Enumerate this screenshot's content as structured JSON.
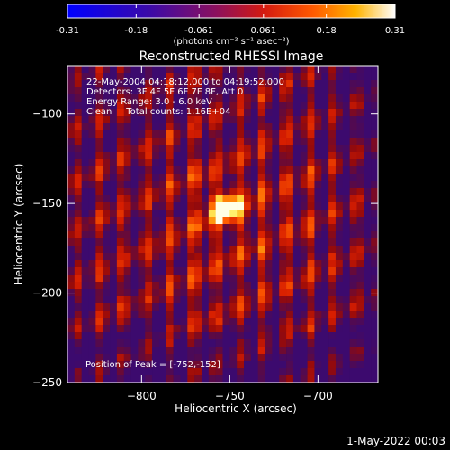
{
  "colorbar": {
    "tick_labels": [
      "-0.31",
      "-0.18",
      "-0.061",
      "0.061",
      "0.18",
      "0.31"
    ],
    "ticks": [
      -0.31,
      -0.18,
      -0.061,
      0.061,
      0.18,
      0.31
    ],
    "range": [
      -0.31,
      0.31
    ],
    "units_text": "(photons cm⁻² s⁻¹ asec⁻²)"
  },
  "title": "Reconstructed RHESSI Image",
  "info": {
    "line1": "22-May-2004 04:18:12.000 to 04:19:52.000",
    "line2": "Detectors: 3F 4F 5F 6F 7F 8F, Att 0",
    "line3": "Energy Range: 3.0 - 6.0 keV",
    "line4": "Clean     Total counts: 1.16E+04"
  },
  "peak_label": "Position of Peak = [-752,-152]",
  "footer_date": "1-May-2022 00:03",
  "chart_data": {
    "type": "heatmap",
    "title": "Reconstructed RHESSI Image",
    "xlabel": "Heliocentric X (arcsec)",
    "ylabel": "Heliocentric Y (arcsec)",
    "xlim": [
      -842,
      -666
    ],
    "ylim": [
      -250,
      -73
    ],
    "xticks": [
      -800,
      -750,
      -700
    ],
    "yticks": [
      -100,
      -150,
      -200,
      -250
    ],
    "xtick_labels": [
      "−800",
      "−750",
      "−700"
    ],
    "ytick_labels": [
      "−100",
      "−150",
      "−200",
      "−250"
    ],
    "peak": [
      -752,
      -152
    ],
    "colormap": "hot-blue (blue → purple → red → orange → yellow → white)",
    "colors": [
      "#0000ff",
      "#6a0fa0",
      "#aa1a1a",
      "#ff3300",
      "#ff9900",
      "#ffff66",
      "#ffffff"
    ]
  }
}
